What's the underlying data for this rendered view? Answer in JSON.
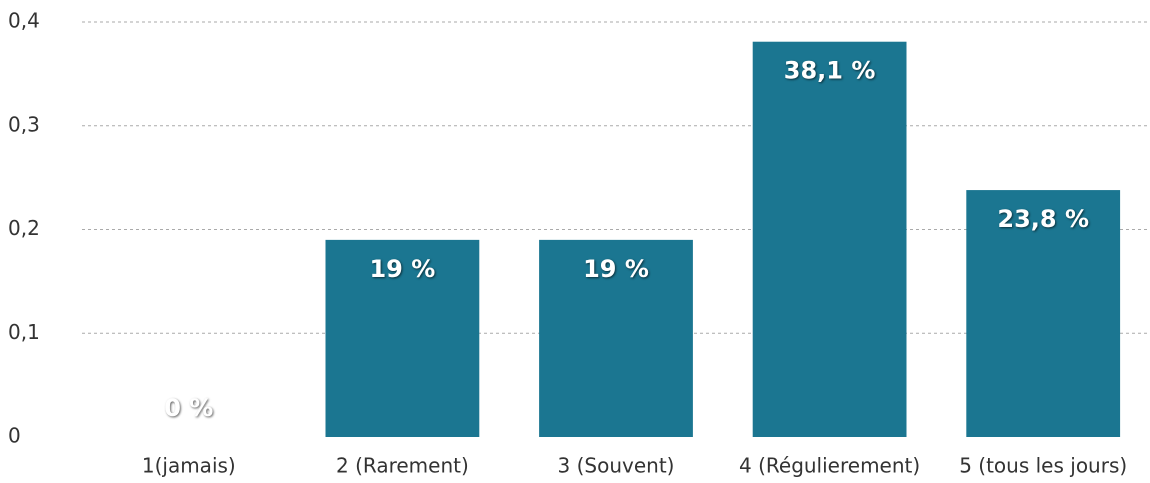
{
  "chart_data": {
    "type": "bar",
    "categories": [
      "1(jamais)",
      "2 (Rarement)",
      "3 (Souvent)",
      "4 (Régulierement)",
      "5 (tous les jours)"
    ],
    "values": [
      0,
      0.19,
      0.19,
      0.381,
      0.238
    ],
    "value_labels": [
      "0 %",
      "19 %",
      "19 %",
      "38,1 %",
      "23,8 %"
    ],
    "color": "#1b7691",
    "ylim": [
      0,
      0.4
    ],
    "yticks": [
      0,
      {
        "value": 0.1,
        "label": "0,1"
      },
      {
        "value": 0.2,
        "label": "0,2"
      },
      {
        "value": 0.3,
        "label": "0,3"
      },
      {
        "value": 0.4,
        "label": "0,4"
      }
    ],
    "grid": true
  }
}
